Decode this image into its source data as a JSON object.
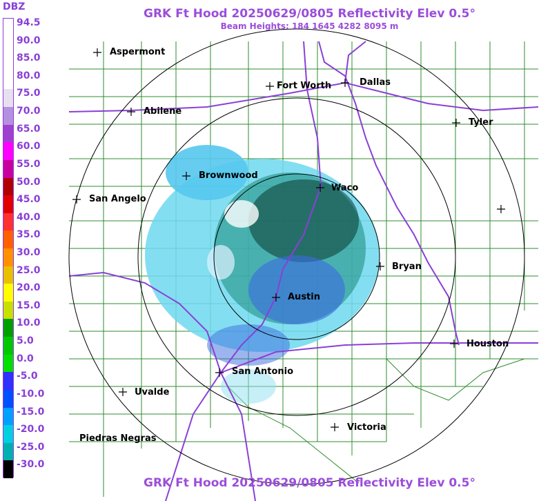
{
  "header": {
    "title": "GRK Ft Hood 20250629/0805 Reflectivity Elev 0.5°",
    "subtitle": "Beam Heights: 184 1645 4282 8095 m"
  },
  "footer": {
    "title": "GRK Ft Hood 20250629/0805 Reflectivity Elev 0.5°"
  },
  "legend": {
    "unit": "DBZ",
    "labels": [
      "94.5",
      "90.0",
      "85.0",
      "80.0",
      "75.0",
      "70.0",
      "65.0",
      "60.0",
      "55.0",
      "50.0",
      "45.0",
      "40.0",
      "35.0",
      "30.0",
      "25.0",
      "20.0",
      "15.0",
      "10.0",
      "5.0",
      "0.0",
      "-5.0",
      "-10.0",
      "-15.0",
      "-20.0",
      "-25.0",
      "-30.0"
    ],
    "colors": [
      "#ffffff",
      "#ffffff",
      "#ffffff",
      "#ffffff",
      "#e8e0f0",
      "#b690e0",
      "#a040d0",
      "#ff00ff",
      "#c800a0",
      "#b00000",
      "#e00000",
      "#ff3030",
      "#ff6000",
      "#ff9000",
      "#e8c000",
      "#ffff00",
      "#c8e000",
      "#00a000",
      "#00c800",
      "#00e000",
      "#3030ff",
      "#0050ff",
      "#00a0ff",
      "#00d0e0",
      "#00b0b0",
      "#000000"
    ]
  },
  "cities": [
    {
      "name": "Aspermont"
    },
    {
      "name": "Fort Worth"
    },
    {
      "name": "Dallas"
    },
    {
      "name": "Abilene"
    },
    {
      "name": "Tyler"
    },
    {
      "name": "Brownwood"
    },
    {
      "name": "Waco"
    },
    {
      "name": "San Angelo"
    },
    {
      "name": "Bryan"
    },
    {
      "name": "Austin"
    },
    {
      "name": "Houston"
    },
    {
      "name": "San Antonio"
    },
    {
      "name": "Uvalde"
    },
    {
      "name": "Victoria"
    },
    {
      "name": "Piedras Negras"
    }
  ],
  "colors": {
    "title": "#9b4ddb",
    "rings": "#000000",
    "counties": "#2e8b2e",
    "highways": "#8a3fd6"
  }
}
